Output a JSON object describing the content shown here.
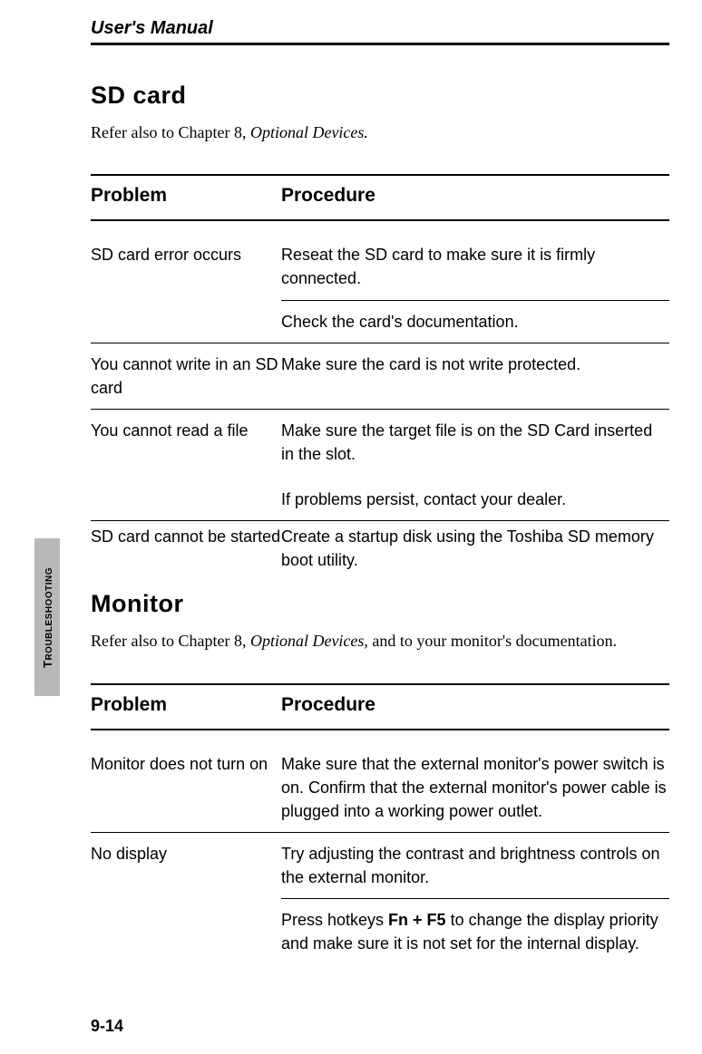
{
  "header": {
    "title": "User's Manual"
  },
  "sideTab": {
    "label": "TROUBLESHOOTING"
  },
  "pageNumber": "9-14",
  "sections": [
    {
      "title": "SD card",
      "intro_plain": "Refer also to Chapter 8, ",
      "intro_italic": "Optional Devices.",
      "intro_tail": "",
      "columns": {
        "left": "Problem",
        "right": "Procedure"
      },
      "rows": [
        {
          "problem": "SD card error occurs",
          "procedures": [
            "Reseat the SD card to make sure it is firmly connected.",
            "Check the card's documentation."
          ]
        },
        {
          "problem": "You cannot write in an SD card",
          "procedures": [
            "Make sure the card is not write protected."
          ]
        },
        {
          "problem": "You cannot read a file",
          "procedures": [
            "Make sure the target file is on the SD Card inserted in the slot.",
            "If problems persist, contact your dealer."
          ]
        },
        {
          "problem": "SD card cannot be started",
          "procedures": [
            "Create a startup disk using the Toshiba SD memory boot utility."
          ]
        }
      ]
    },
    {
      "title": "Monitor",
      "intro_plain": "Refer also to Chapter 8, ",
      "intro_italic": "Optional Devices,",
      "intro_tail": " and to your monitor's documentation.",
      "columns": {
        "left": "Problem",
        "right": "Procedure"
      },
      "rows": [
        {
          "problem": "Monitor does not turn on",
          "procedures": [
            "Make sure that the external monitor's power switch is on. Confirm that the external monitor's power cable is plugged into a working power outlet."
          ]
        },
        {
          "problem": "No display",
          "procedures": [
            "Try adjusting the contrast and brightness controls on the external monitor.",
            "Press hotkeys <b>Fn + F5</b> to change the display priority and make sure it is not set for the internal display."
          ]
        }
      ]
    }
  ]
}
